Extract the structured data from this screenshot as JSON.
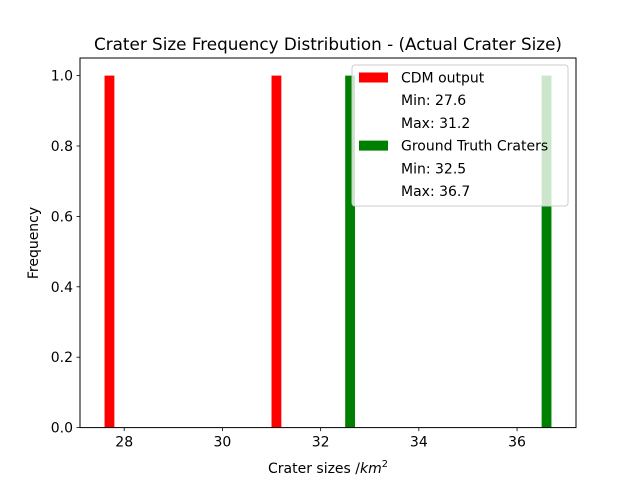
{
  "chart_data": {
    "type": "bar",
    "title": "Crater Size Frequency Distribution - (Actual Crater Size)",
    "xlabel": "Crater sizes /km²",
    "xlabel_parts": {
      "main": "Crater sizes /",
      "unit": "km",
      "sup": "2"
    },
    "ylabel": "Frequency",
    "xlim": [
      27.1,
      37.2
    ],
    "ylim": [
      0.0,
      1.05
    ],
    "xticks": [
      28,
      30,
      32,
      34,
      36
    ],
    "xtick_labels": [
      "28",
      "30",
      "32",
      "34",
      "36"
    ],
    "yticks": [
      0.0,
      0.2,
      0.4,
      0.6,
      0.8,
      1.0
    ],
    "ytick_labels": [
      "0.0",
      "0.2",
      "0.4",
      "0.6",
      "0.8",
      "1.0"
    ],
    "grid": false,
    "legend_position": "top-right",
    "series": [
      {
        "name": "CDM output",
        "color": "#ff0000",
        "bars": [
          {
            "x0": 27.6,
            "x1": 27.8,
            "value": 1
          },
          {
            "x0": 31.0,
            "x1": 31.2,
            "value": 1
          }
        ]
      },
      {
        "name": "Ground Truth Craters",
        "color": "#008000",
        "bars": [
          {
            "x0": 32.5,
            "x1": 32.7,
            "value": 1
          },
          {
            "x0": 36.5,
            "x1": 36.7,
            "value": 1
          }
        ]
      }
    ],
    "legend": [
      {
        "label": "CDM output",
        "kind": "patch",
        "color": "#ff0000"
      },
      {
        "label": "Min: 27.6",
        "kind": "blank"
      },
      {
        "label": "Max: 31.2",
        "kind": "blank"
      },
      {
        "label": "Ground Truth Craters",
        "kind": "patch",
        "color": "#008000"
      },
      {
        "label": "Min: 32.5",
        "kind": "blank"
      },
      {
        "label": "Max: 36.7",
        "kind": "blank"
      }
    ]
  }
}
